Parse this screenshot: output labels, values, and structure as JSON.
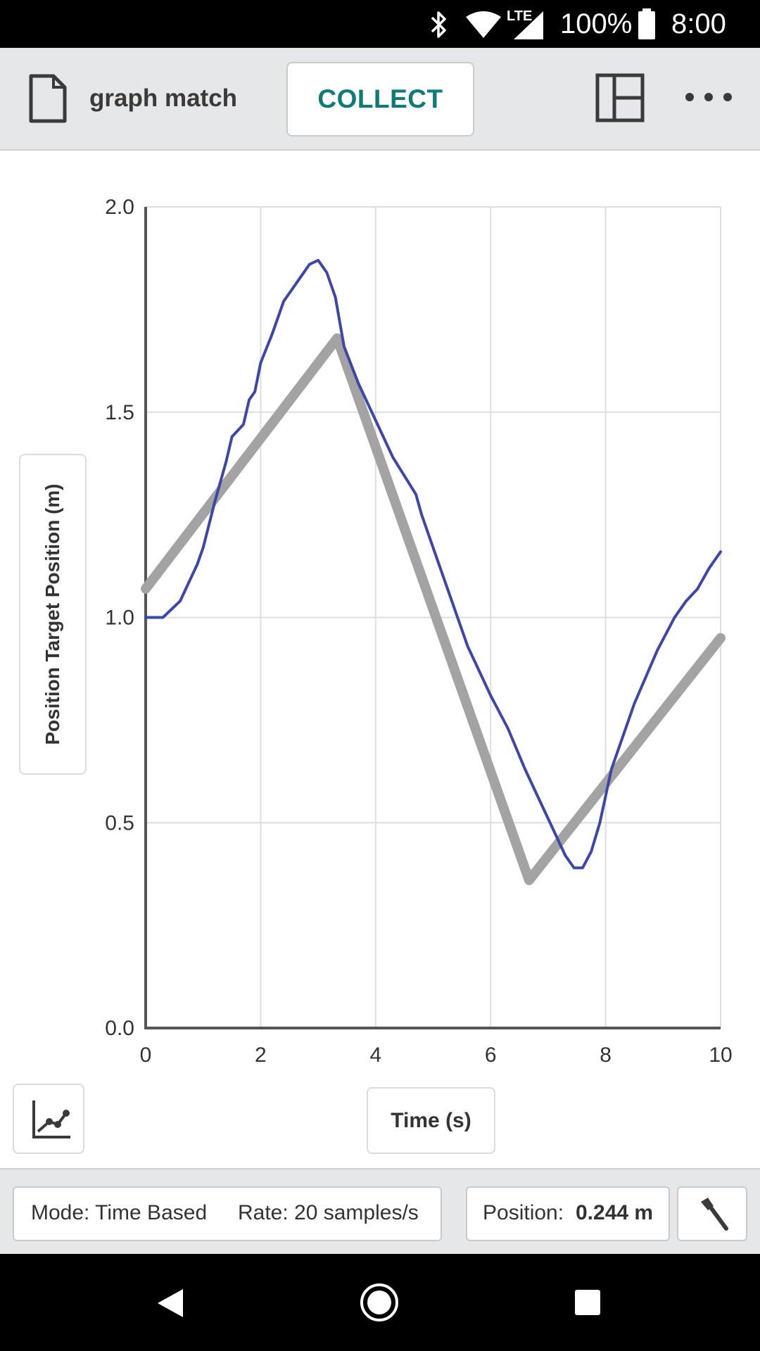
{
  "status_bar": {
    "battery": "100%",
    "time": "8:00",
    "network": "LTE",
    "icons": [
      "bluetooth-icon",
      "wifi-icon",
      "signal-icon",
      "battery-icon"
    ]
  },
  "toolbar": {
    "doc_title": "graph match",
    "collect_label": "COLLECT",
    "icons": [
      "document-icon",
      "layout-icon",
      "more-icon"
    ]
  },
  "colors": {
    "accent": "#0e7b78",
    "measured_line": "#3d47a8",
    "target_line": "#a3a3a3"
  },
  "chart_data": {
    "type": "line",
    "title": "",
    "xlabel": "Time (s)",
    "ylabel": "Position Target Position (m)",
    "xlim": [
      0,
      10
    ],
    "ylim": [
      0,
      2
    ],
    "x_ticks": [
      "0",
      "2",
      "4",
      "6",
      "8",
      "10"
    ],
    "y_ticks": [
      "0.0",
      "0.5",
      "1.0",
      "1.5",
      "2.0"
    ],
    "grid": true,
    "series": [
      {
        "name": "Target Position",
        "x": [
          0,
          3.33,
          6.67,
          10
        ],
        "values": [
          1.07,
          1.68,
          0.36,
          0.95
        ]
      },
      {
        "name": "Position",
        "x": [
          0,
          0.3,
          0.6,
          0.9,
          1.0,
          1.2,
          1.4,
          1.5,
          1.7,
          1.8,
          1.9,
          2.0,
          2.2,
          2.4,
          2.5,
          2.7,
          2.85,
          3.0,
          3.15,
          3.3,
          3.45,
          3.7,
          4.0,
          4.3,
          4.7,
          4.8,
          5.0,
          5.3,
          5.6,
          6.0,
          6.3,
          6.6,
          7.0,
          7.3,
          7.45,
          7.6,
          7.75,
          7.9,
          8.1,
          8.5,
          8.9,
          9.2,
          9.4,
          9.6,
          9.8,
          10.0
        ],
        "values": [
          1.0,
          1.0,
          1.04,
          1.13,
          1.17,
          1.28,
          1.38,
          1.44,
          1.47,
          1.53,
          1.55,
          1.62,
          1.69,
          1.77,
          1.79,
          1.83,
          1.86,
          1.87,
          1.84,
          1.78,
          1.66,
          1.57,
          1.48,
          1.39,
          1.3,
          1.25,
          1.17,
          1.05,
          0.93,
          0.81,
          0.73,
          0.63,
          0.51,
          0.42,
          0.39,
          0.39,
          0.43,
          0.5,
          0.63,
          0.79,
          0.92,
          1.0,
          1.04,
          1.07,
          1.12,
          1.16
        ]
      }
    ]
  },
  "footer": {
    "mode": "Mode: Time Based",
    "rate": "Rate: 20 samples/s",
    "position_label": "Position:",
    "position_value": "0.244 m"
  },
  "nav": {
    "icons": [
      "back-icon",
      "home-icon",
      "recents-icon"
    ]
  }
}
